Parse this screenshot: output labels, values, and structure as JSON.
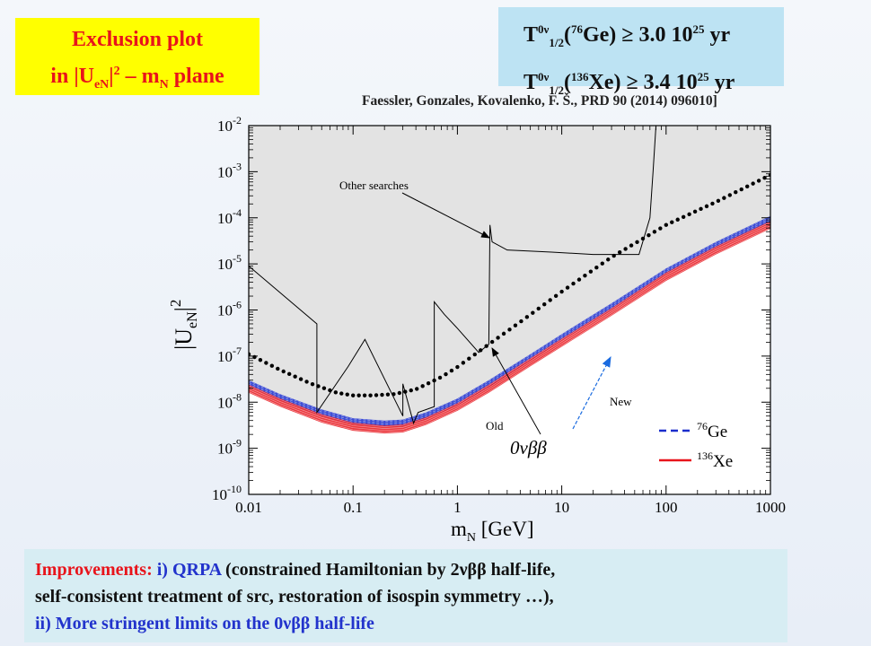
{
  "title": {
    "line1": "Exclusion plot",
    "line2_prefix": "in |U",
    "line2_sub": "eN",
    "line2_sup": "2",
    "line2_mid": " – m",
    "line2_sub2": "N",
    "line2_suffix": " plane"
  },
  "halflife": {
    "ge_text": "T0ν1/2(76Ge) ≥ 3.0 10^25 yr",
    "xe_text": "T0ν1/2(136Xe) ≥ 3.4 10^25 yr",
    "T": "T",
    "sup0v": "0ν",
    "sub12": "1/2",
    "ge_iso": "76",
    "ge_el": "Ge",
    "ge_val": "≥ 3.0 10",
    "ge_exp": "25",
    "xe_iso": "136",
    "xe_el": "Xe",
    "xe_val": "≥ 3.4 10",
    "xe_exp": "25",
    "unit": "yr"
  },
  "reference": "Faessler, Gonzales, Kovalenko, F. Š.,  PRD 90 (2014) 096010]",
  "bottom": {
    "improvements_label": "Improvements:",
    "qrpa_label": "i) QRPA",
    "line1_rest": " (constrained Hamiltonian by 2νββ half-life,",
    "line2": "self-consistent treatment of src, restoration of isospin symmetry …),",
    "line3": "ii) More stringent limits on the 0νββ half-life"
  },
  "chart_data": {
    "type": "line",
    "xscale": "log",
    "yscale": "log",
    "xlim": [
      0.01,
      1000
    ],
    "ylim": [
      1e-10,
      0.01
    ],
    "xticks": [
      "0.01",
      "0.1",
      "1",
      "10",
      "100",
      "1000"
    ],
    "yticks": [
      {
        "base": "10",
        "exp": "-2"
      },
      {
        "base": "10",
        "exp": "-3"
      },
      {
        "base": "10",
        "exp": "-4"
      },
      {
        "base": "10",
        "exp": "-5"
      },
      {
        "base": "10",
        "exp": "-6"
      },
      {
        "base": "10",
        "exp": "-7"
      },
      {
        "base": "10",
        "exp": "-8"
      },
      {
        "base": "10",
        "exp": "-9"
      },
      {
        "base": "10",
        "exp": "-10"
      }
    ],
    "xlabel": "m",
    "xlabel_sub": "N",
    "xlabel_unit": " [GeV]",
    "ylabel": "|U",
    "ylabel_sub": "eN",
    "ylabel_end": "|",
    "ylabel_sup": "2",
    "annotations": {
      "other_searches": "Other searches",
      "old": "Old",
      "new": "New",
      "zeronu": "0νββ"
    },
    "legend": {
      "placement": "bottom-right",
      "items": [
        {
          "iso": "76",
          "el": "Ge",
          "color": "#1a2dcc"
        },
        {
          "iso": "136",
          "el": "Xe",
          "color": "#e8141b"
        }
      ]
    },
    "series": [
      {
        "name": "Other searches",
        "style": "solid-black-thin",
        "x": [
          0.01,
          0.045,
          0.045,
          0.09,
          0.13,
          0.3,
          0.3,
          0.38,
          0.42,
          0.6,
          0.6,
          0.75,
          1.0,
          1.6,
          2.0,
          2.05,
          2.15,
          3.0,
          8.0,
          20.0,
          55.0,
          70.0,
          75.0,
          80.0
        ],
        "y": [
          9e-06,
          5e-07,
          6e-09,
          6e-08,
          2.3e-07,
          5e-09,
          2.5e-08,
          3.5e-09,
          6e-09,
          8e-09,
          1.5e-06,
          8e-07,
          4e-07,
          1.2e-07,
          1.8e-07,
          7e-05,
          3e-05,
          2e-05,
          1.8e-05,
          1.6e-05,
          1.6e-05,
          0.0001,
          0.001,
          0.01
        ]
      },
      {
        "name": "Old",
        "style": "dotted-black-thick",
        "x": [
          0.01,
          0.02,
          0.04,
          0.07,
          0.1,
          0.15,
          0.25,
          0.4,
          0.7,
          1.0,
          2.0,
          4.0,
          10.0,
          30.0,
          100.0,
          300.0,
          1000.0
        ],
        "y": [
          1.1e-07,
          5e-08,
          2.5e-08,
          1.6e-08,
          1.4e-08,
          1.4e-08,
          1.5e-08,
          1.9e-08,
          3.5e-08,
          5.8e-08,
          1.8e-07,
          5.5e-07,
          2.5e-06,
          1.4e-05,
          7e-05,
          0.00022,
          0.00085
        ]
      },
      {
        "name": "76Ge",
        "style": "band-blue",
        "x": [
          0.01,
          0.02,
          0.05,
          0.1,
          0.2,
          0.3,
          0.5,
          1.0,
          2.0,
          5.0,
          10.0,
          30.0,
          100.0,
          300.0,
          1000.0
        ],
        "y_upper": [
          3e-08,
          1.5e-08,
          7e-09,
          4.5e-09,
          4e-09,
          4.2e-09,
          6e-09,
          1.2e-08,
          3e-08,
          1.1e-07,
          3e-07,
          1.4e-06,
          8e-06,
          3e-05,
          0.00011
        ],
        "y_lower": [
          2.2e-08,
          1.1e-08,
          5e-09,
          3.3e-09,
          2.9e-09,
          3e-09,
          4.3e-09,
          8.5e-09,
          2.1e-08,
          8e-08,
          2.2e-07,
          1e-06,
          6e-06,
          2.2e-05,
          8e-05
        ]
      },
      {
        "name": "136Xe",
        "style": "band-red",
        "x": [
          0.01,
          0.02,
          0.05,
          0.1,
          0.2,
          0.3,
          0.5,
          1.0,
          2.0,
          5.0,
          10.0,
          30.0,
          100.0,
          300.0,
          1000.0
        ],
        "y_upper": [
          2.4e-08,
          1.2e-08,
          5.5e-09,
          3.6e-09,
          3.1e-09,
          3.3e-09,
          4.7e-09,
          9.5e-09,
          2.4e-08,
          9e-08,
          2.4e-07,
          1.1e-06,
          6.5e-06,
          2.4e-05,
          8.5e-05
        ],
        "y_lower": [
          1.6e-08,
          8e-09,
          3.6e-09,
          2.4e-09,
          2.1e-09,
          2.2e-09,
          3.2e-09,
          6.5e-09,
          1.6e-08,
          6e-08,
          1.6e-07,
          7.5e-07,
          4.3e-06,
          1.6e-05,
          5.8e-05
        ]
      }
    ],
    "colors": {
      "shade": "#e3e3e3",
      "ge": "#1a2dcc",
      "xe": "#e8141b",
      "arrow_new": "#1a6be0"
    }
  }
}
